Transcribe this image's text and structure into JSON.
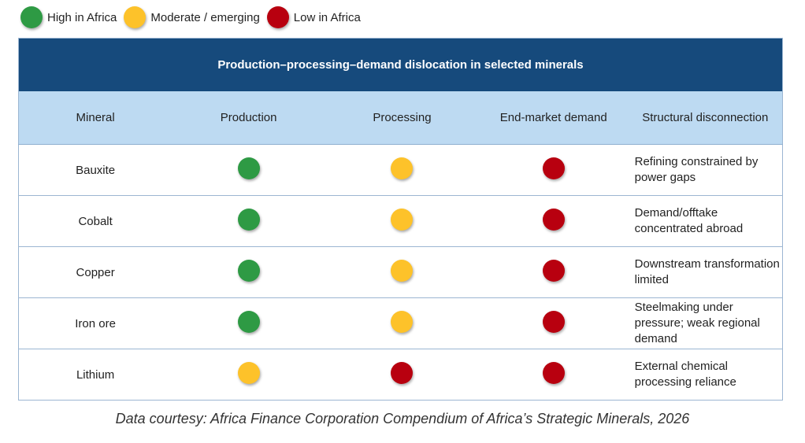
{
  "legend": [
    {
      "label": "High in Africa",
      "color": "#2e9a44"
    },
    {
      "label": "Moderate / emerging",
      "color": "#fdc22a"
    },
    {
      "label": "Low in Africa",
      "color": "#b8000f"
    }
  ],
  "table": {
    "title": "Production–processing–demand dislocation in selected minerals",
    "columns": [
      "Mineral",
      "Production",
      "Processing",
      "End-market demand",
      "Structural disconnection"
    ],
    "rows": [
      {
        "mineral": "Bauxite",
        "production": "high",
        "processing": "moderate",
        "demand": "low",
        "disconnection": "Refining constrained by power gaps"
      },
      {
        "mineral": "Cobalt",
        "production": "high",
        "processing": "moderate",
        "demand": "low",
        "disconnection": "Demand/offtake concentrated abroad"
      },
      {
        "mineral": "Copper",
        "production": "high",
        "processing": "moderate",
        "demand": "low",
        "disconnection": "Downstream transformation limited"
      },
      {
        "mineral": "Iron ore",
        "production": "high",
        "processing": "moderate",
        "demand": "low",
        "disconnection": "Steelmaking under pressure; weak regional demand"
      },
      {
        "mineral": "Lithium",
        "production": "moderate",
        "processing": "low",
        "demand": "low",
        "disconnection": "External chemical processing reliance"
      }
    ]
  },
  "caption": "Data courtesy: Africa Finance Corporation Compendium of Africa’s Strategic Minerals, 2026"
}
